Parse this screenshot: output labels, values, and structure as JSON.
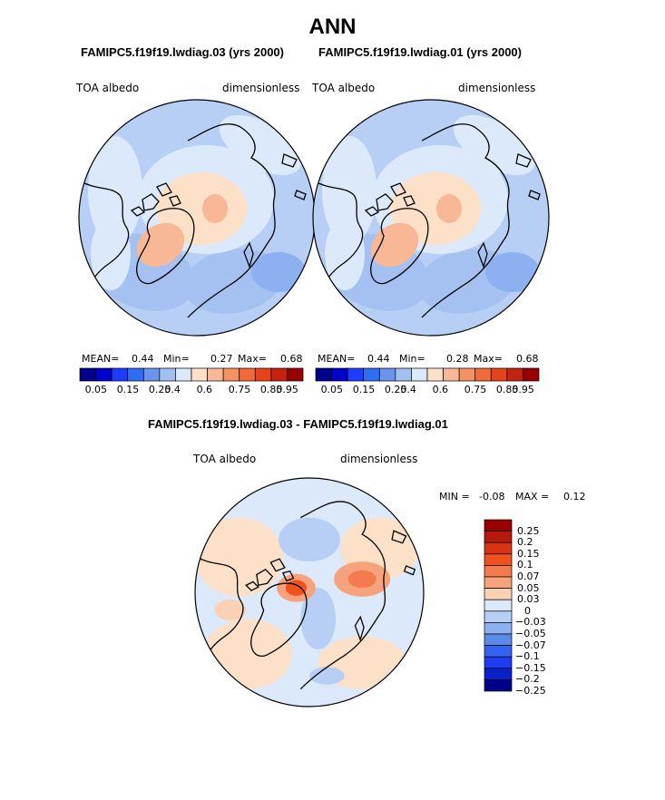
{
  "title": "ANN",
  "panels": [
    {
      "case": "FAMIPC5.f19f19.lwdiag.03 (yrs 2000)",
      "variable": "TOA albedo",
      "units": "dimensionless",
      "stats": {
        "mean_label": "MEAN=",
        "mean": "0.44",
        "min_label": "Min=",
        "min": "0.27",
        "max_label": "Max=",
        "max": "0.68"
      }
    },
    {
      "case": "FAMIPC5.f19f19.lwdiag.01 (yrs 2000)",
      "variable": "TOA albedo",
      "units": "dimensionless",
      "stats": {
        "mean_label": "MEAN=",
        "mean": "0.44",
        "min_label": "Min=",
        "min": "0.28",
        "max_label": "Max=",
        "max": "0.68"
      }
    }
  ],
  "colorbar_top": {
    "colors": [
      "#00008b",
      "#0000cd",
      "#1e3cff",
      "#2d6ef5",
      "#6a94f0",
      "#a2bff2",
      "#dbe9fb",
      "#fde0c8",
      "#f8b896",
      "#f59262",
      "#f16a3a",
      "#e4431c",
      "#c62212",
      "#990000"
    ],
    "labels": [
      "0.05",
      "0.15",
      "0.25",
      "0.4",
      "0.6",
      "0.75",
      "0.85",
      "0.95"
    ]
  },
  "difference": {
    "title": "FAMIPC5.f19f19.lwdiag.03 - FAMIPC5.f19f19.lwdiag.01",
    "variable": "TOA albedo",
    "units": "dimensionless",
    "min_label": "MIN =",
    "min": "-0.08",
    "max_label": "MAX =",
    "max": "0.12"
  },
  "legend_diff": {
    "colors": [
      "#990000",
      "#b51a0a",
      "#d93412",
      "#f0521e",
      "#f47b4d",
      "#f6a37d",
      "#fbd1b5",
      "#dbe9fb",
      "#b7cff5",
      "#8cb0f0",
      "#5c8ae8",
      "#3563f0",
      "#1f3cf0",
      "#0a20c8",
      "#00008b"
    ],
    "labels": [
      "0.25",
      "0.2",
      "0.15",
      "0.1",
      "0.07",
      "0.05",
      "0.03",
      "0",
      "−0.03",
      "−0.05",
      "−0.07",
      "−0.1",
      "−0.15",
      "−0.2",
      "−0.25"
    ]
  },
  "colors": {
    "ocean_base": "#c5d8f7",
    "coast": "#000000"
  }
}
